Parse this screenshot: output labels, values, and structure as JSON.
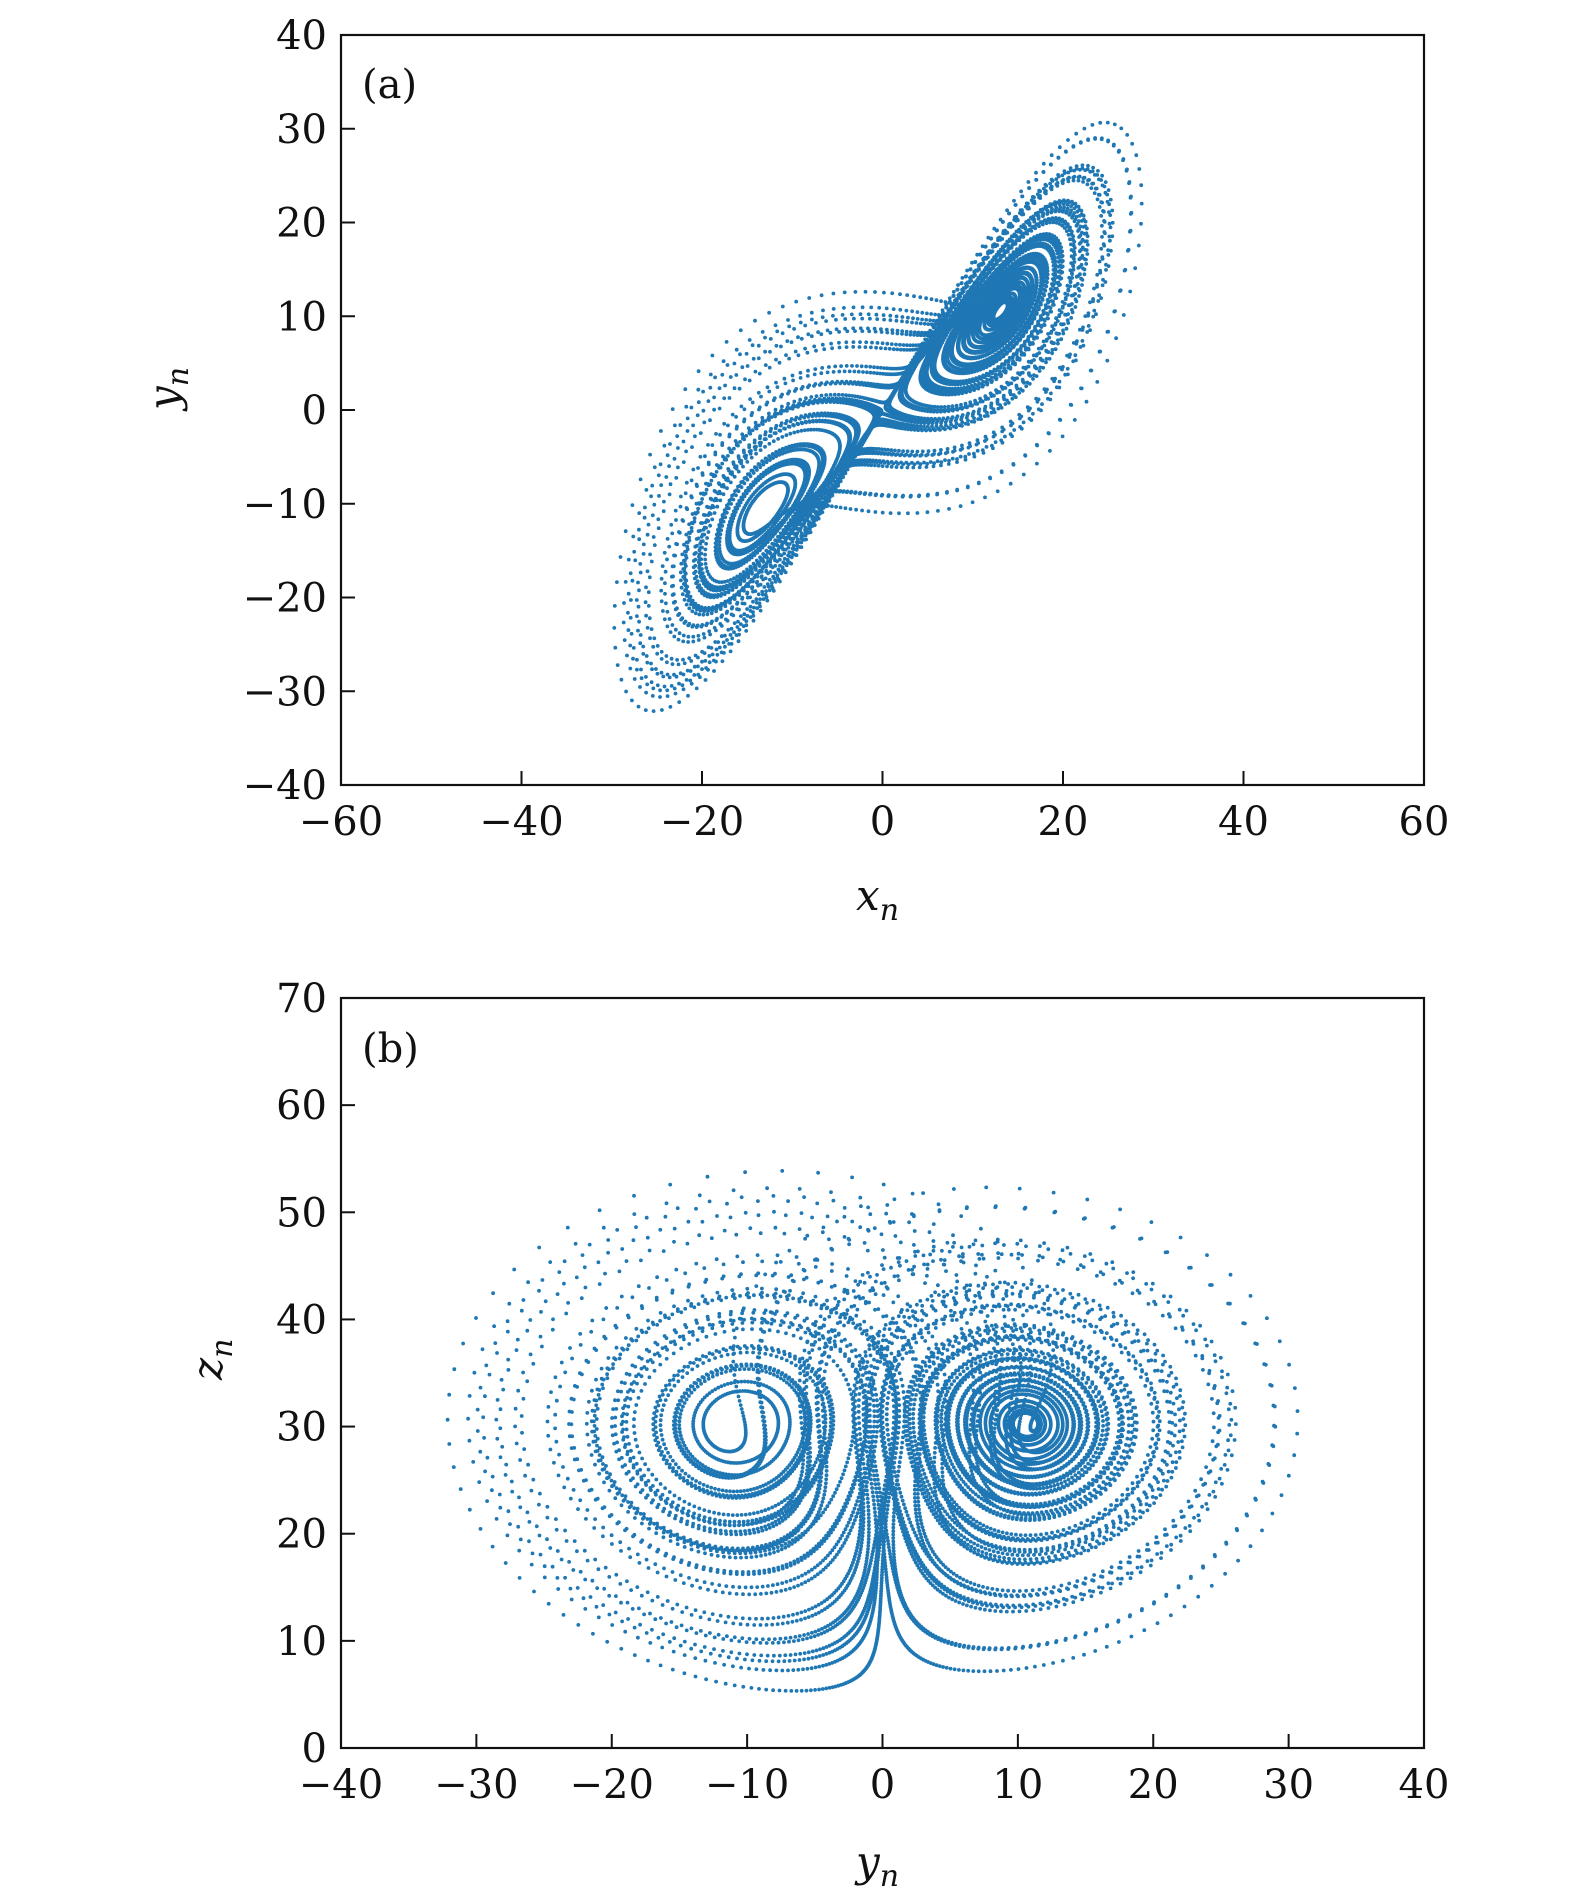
{
  "chart_data": [
    {
      "type": "scatter",
      "panel_label": "(a)",
      "xlabel": "x",
      "xlabel_sub": "n",
      "ylabel": "y",
      "ylabel_sub": "n",
      "xlim": [
        -60,
        60
      ],
      "ylim": [
        -40,
        40
      ],
      "xticks": [
        -60,
        -40,
        -20,
        0,
        20,
        40,
        60
      ],
      "yticks": [
        -40,
        -30,
        -20,
        -10,
        0,
        10,
        20,
        30,
        40
      ],
      "xtick_labels": [
        "−60",
        "−40",
        "−20",
        "0",
        "20",
        "40",
        "60"
      ],
      "ytick_labels": [
        "−40",
        "−30",
        "−20",
        "−10",
        "0",
        "10",
        "20",
        "30",
        "40"
      ],
      "grid": false,
      "marker_color": "#1f77b4",
      "series_description": "Lorenz-like attractor projection, x_n vs y_n"
    },
    {
      "type": "scatter",
      "panel_label": "(b)",
      "xlabel": "y",
      "xlabel_sub": "n",
      "ylabel": "z",
      "ylabel_sub": "n",
      "xlim": [
        -40,
        40
      ],
      "ylim": [
        0,
        70
      ],
      "xticks": [
        -40,
        -30,
        -20,
        -10,
        0,
        10,
        20,
        30,
        40
      ],
      "yticks": [
        0,
        10,
        20,
        30,
        40,
        50,
        60,
        70
      ],
      "xtick_labels": [
        "−40",
        "−30",
        "−20",
        "−10",
        "0",
        "10",
        "20",
        "30",
        "40"
      ],
      "ytick_labels": [
        "0",
        "10",
        "20",
        "30",
        "40",
        "50",
        "60",
        "70"
      ],
      "grid": false,
      "marker_color": "#1f77b4",
      "series_description": "Lorenz-like attractor projection, y_n vs z_n"
    }
  ]
}
